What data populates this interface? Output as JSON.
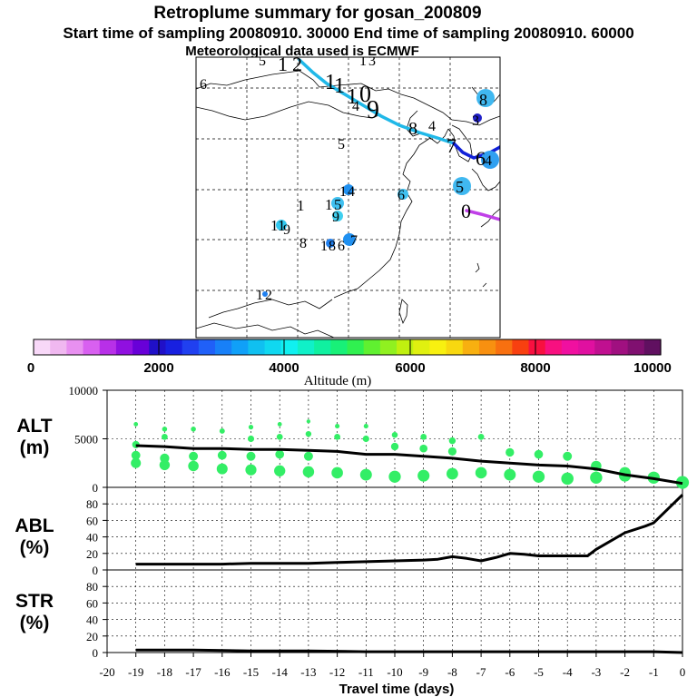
{
  "title": {
    "line1": "Retroplume summary for gosan_200809",
    "line2": "Start time of sampling 20080910. 30000     End time of sampling 20080910. 60000",
    "line3": "Meteorological data used is ECMWF"
  },
  "colorbar": {
    "label": "Altitude (m)",
    "ticks": [
      "0",
      "2000",
      "4000",
      "6000",
      "8000",
      "10000"
    ],
    "colors": [
      "#f8d8f8",
      "#f0b8f0",
      "#e890f0",
      "#d860f0",
      "#b830e8",
      "#9010e0",
      "#6800d8",
      "#2010c8",
      "#1820e0",
      "#2040f0",
      "#2060f8",
      "#1880f8",
      "#10a0f8",
      "#10c0f0",
      "#10d8f0",
      "#10f0f0",
      "#10f0c8",
      "#10f0a0",
      "#18f078",
      "#30f050",
      "#60f030",
      "#90f020",
      "#c0f010",
      "#e0f010",
      "#f8f010",
      "#f8d810",
      "#f8b010",
      "#f89010",
      "#f87010",
      "#f84010",
      "#f81040",
      "#f81080",
      "#f010a0",
      "#e010a0",
      "#c01090",
      "#a01080",
      "#801070",
      "#601060"
    ]
  },
  "map": {
    "numbers": [
      "5",
      "1",
      "2",
      "1",
      "3",
      "6",
      "1",
      "1",
      "1",
      "0",
      "4",
      "9",
      "8",
      "4",
      "8",
      "3",
      "7",
      "6",
      "4",
      "5",
      "1",
      "4",
      "5",
      "9",
      "1",
      "0",
      "1",
      "5",
      "6",
      "1",
      "1",
      "9",
      "8",
      "1",
      "8",
      "6",
      "7",
      "0",
      "1",
      "2"
    ]
  },
  "chart_data": [
    {
      "type": "line",
      "title": "ALT",
      "ylabel": "ALT (m)",
      "xlabel": "Travel time (days)",
      "ylim": [
        0,
        10000
      ],
      "yticks": [
        "10000",
        "5000",
        "0"
      ],
      "series": [
        {
          "name": "mean altitude",
          "x": [
            -19,
            -18,
            -17,
            -16,
            -15,
            -14,
            -13,
            -12,
            -11,
            -10,
            -9,
            -8,
            -7,
            -6,
            -5,
            -4,
            -3,
            -2,
            -1,
            0
          ],
          "values": [
            4300,
            4200,
            4000,
            4000,
            3900,
            3900,
            3800,
            3700,
            3400,
            3400,
            3200,
            3000,
            2700,
            2500,
            2300,
            2200,
            1900,
            1300,
            900,
            400
          ]
        },
        {
          "name": "plume clusters",
          "x": [
            -19,
            -19,
            -19,
            -19,
            -18,
            -18,
            -18,
            -18,
            -17,
            -17,
            -17,
            -16,
            -16,
            -16,
            -15,
            -15,
            -15,
            -15,
            -14,
            -14,
            -14,
            -14,
            -13,
            -13,
            -13,
            -13,
            -12,
            -12,
            -12,
            -11,
            -11,
            -11,
            -10,
            -10,
            -10,
            -9,
            -9,
            -9,
            -8,
            -8,
            -8,
            -7,
            -7,
            -6,
            -6,
            -5,
            -5,
            -4,
            -4,
            -3,
            -3,
            -2,
            -2,
            -1,
            0
          ],
          "values": [
            6500,
            4400,
            3300,
            2500,
            6000,
            5200,
            3000,
            2300,
            6000,
            3200,
            2200,
            5800,
            3300,
            1900,
            6200,
            5000,
            3200,
            1800,
            6500,
            5200,
            3400,
            1700,
            6800,
            5500,
            3200,
            1600,
            6300,
            5200,
            1500,
            6300,
            5000,
            1300,
            5400,
            4200,
            1100,
            5200,
            4000,
            1200,
            4800,
            3700,
            1400,
            5200,
            1500,
            3600,
            1300,
            3400,
            1100,
            3200,
            900,
            2200,
            1000,
            1500,
            1200,
            1000,
            500
          ]
        }
      ]
    },
    {
      "type": "line",
      "title": "ABL",
      "ylabel": "ABL (%)",
      "xlabel": "Travel time (days)",
      "ylim": [
        0,
        100
      ],
      "yticks": [
        "80",
        "60",
        "40",
        "20",
        "0"
      ],
      "series": [
        {
          "name": "ABL fraction",
          "x": [
            -19,
            -18,
            -17,
            -16,
            -15,
            -14,
            -13,
            -12,
            -11,
            -10,
            -9,
            -8.5,
            -8,
            -7.5,
            -7,
            -6.5,
            -6,
            -5.5,
            -5,
            -4,
            -3.3,
            -3,
            -2,
            -1.3,
            -1,
            0
          ],
          "values": [
            7,
            7,
            7,
            7,
            8,
            8,
            8,
            9,
            10,
            11,
            12,
            13,
            16,
            14,
            11,
            15,
            20,
            19,
            17,
            17,
            17,
            25,
            45,
            53,
            57,
            91
          ]
        }
      ]
    },
    {
      "type": "line",
      "title": "STR",
      "ylabel": "STR (%)",
      "xlabel": "Travel time (days)",
      "ylim": [
        0,
        100
      ],
      "yticks": [
        "80",
        "60",
        "40",
        "20",
        "0"
      ],
      "xticks": [
        "-20",
        "-19",
        "-18",
        "-17",
        "-16",
        "-15",
        "-14",
        "-13",
        "-12",
        "-11",
        "-10",
        "-9",
        "-8",
        "-7",
        "-6",
        "-5",
        "-4",
        "-3",
        "-2",
        "-1",
        "0"
      ],
      "series": [
        {
          "name": "stratospheric fraction",
          "x": [
            -19,
            -17,
            -15,
            -13,
            -11,
            -9,
            -7,
            -5,
            -3,
            -1,
            0
          ],
          "values": [
            3,
            3,
            2,
            2,
            1,
            1,
            1,
            1,
            1,
            1,
            0
          ]
        }
      ]
    }
  ],
  "panel_labels": {
    "alt": [
      "ALT",
      "(m)"
    ],
    "abl": [
      "ABL",
      "(%)"
    ],
    "str": [
      "STR",
      "(%)"
    ]
  }
}
